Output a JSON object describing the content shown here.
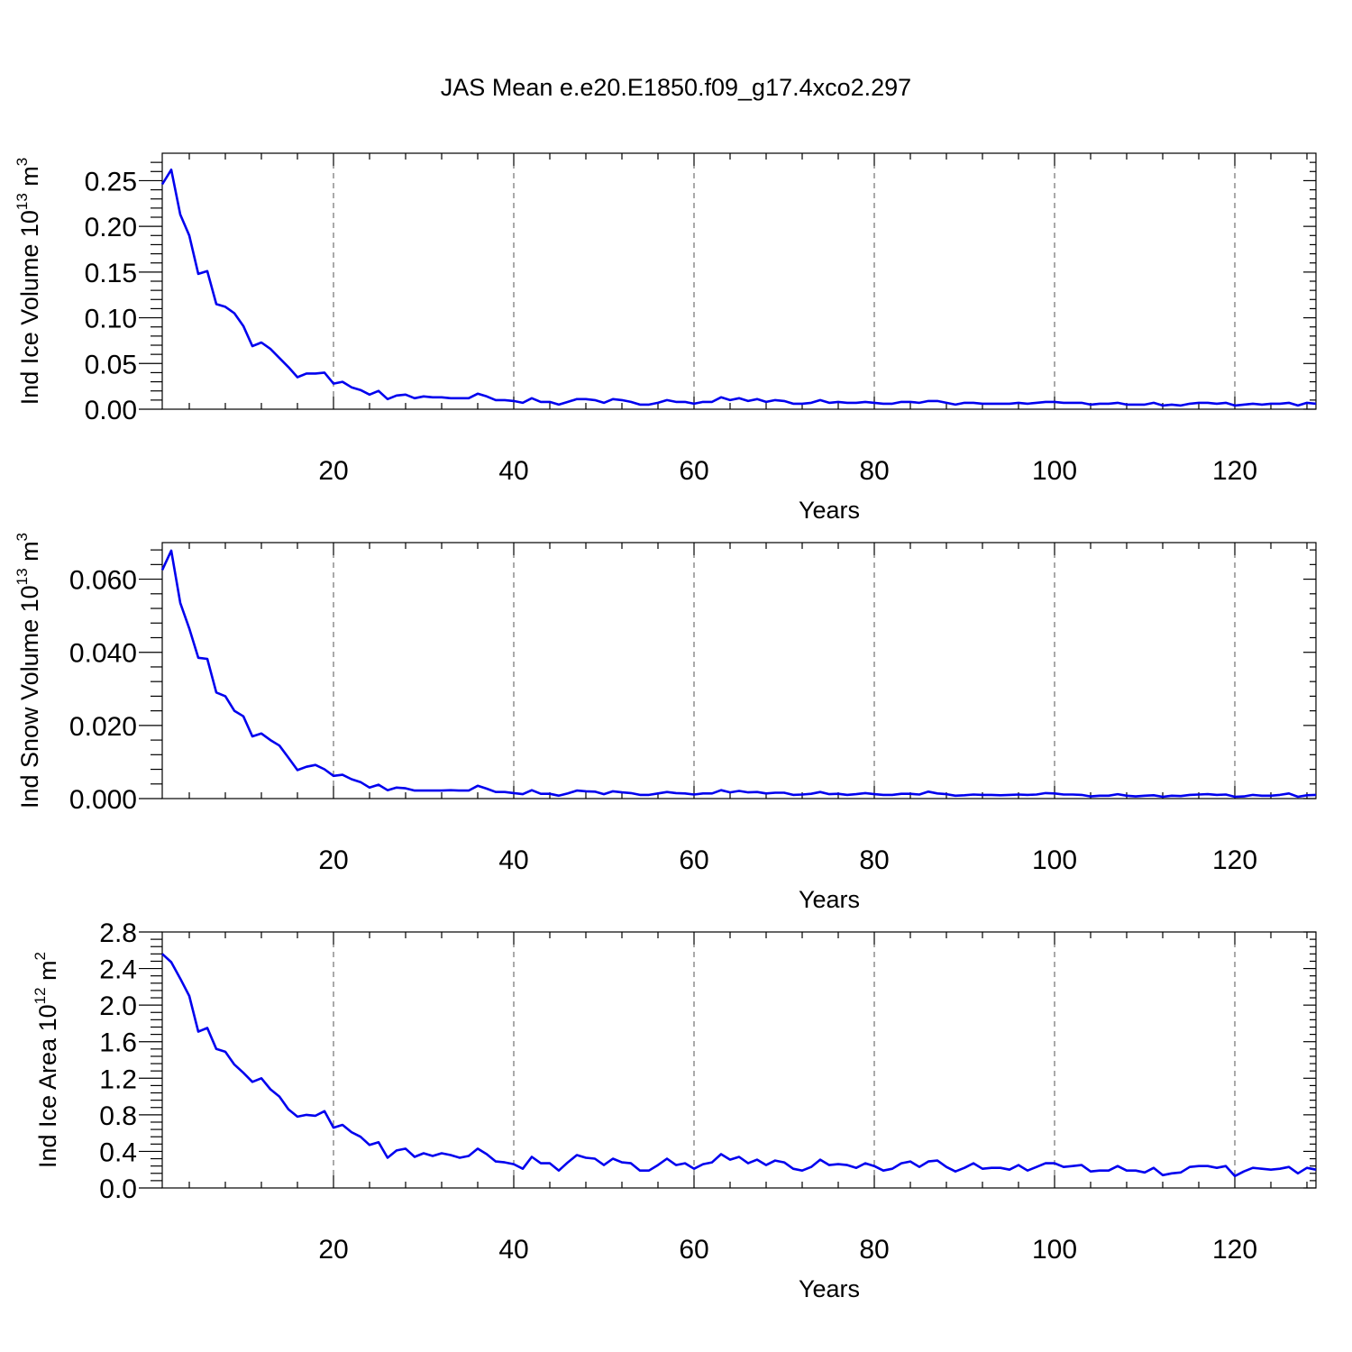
{
  "title": "JAS Mean e.e20.E1850.f09_g17.4xco2.297",
  "colors": {
    "line": "#0000ee",
    "axis": "#000000",
    "grid": "#555555"
  },
  "chart_data": [
    {
      "type": "line",
      "xlabel": "Years",
      "ylabel_parts": [
        "Ind Ice Volume 10",
        "13",
        " m",
        "3"
      ],
      "xlim": [
        1,
        129
      ],
      "ylim": [
        0,
        0.28
      ],
      "xticks": [
        20,
        40,
        60,
        80,
        100,
        120
      ],
      "xtick_labels": [
        "20",
        "40",
        "60",
        "80",
        "100",
        "120"
      ],
      "yticks": [
        0,
        0.05,
        0.1,
        0.15,
        0.2,
        0.25
      ],
      "ytick_labels": [
        "0.00",
        "0.05",
        "0.10",
        "0.15",
        "0.20",
        "0.25"
      ],
      "grid_x": true,
      "series": [
        {
          "x": [
            1,
            2,
            3,
            4,
            5,
            6,
            7,
            8,
            9,
            10,
            11,
            12,
            13,
            14,
            15,
            16,
            17,
            18,
            19,
            20,
            21,
            22,
            23,
            24,
            25,
            26,
            27,
            28,
            29,
            30,
            31,
            32,
            33,
            34,
            35,
            36,
            37,
            38,
            39,
            40,
            41,
            42,
            43,
            44,
            45,
            46,
            47,
            48,
            49,
            50,
            51,
            52,
            53,
            54,
            55,
            56,
            57,
            58,
            59,
            60,
            61,
            62,
            63,
            64,
            65,
            66,
            67,
            68,
            69,
            70,
            71,
            72,
            73,
            74,
            75,
            76,
            77,
            78,
            79,
            80,
            81,
            82,
            83,
            84,
            85,
            86,
            87,
            88,
            89,
            90,
            91,
            92,
            93,
            94,
            95,
            96,
            97,
            98,
            99,
            100,
            101,
            102,
            103,
            104,
            105,
            106,
            107,
            108,
            109,
            110,
            111,
            112,
            113,
            114,
            115,
            116,
            117,
            118,
            119,
            120,
            121,
            122,
            123,
            124,
            125,
            126,
            127,
            128,
            129
          ],
          "values": [
            0.246,
            0.262,
            0.213,
            0.19,
            0.148,
            0.151,
            0.115,
            0.112,
            0.105,
            0.091,
            0.069,
            0.073,
            0.066,
            0.056,
            0.046,
            0.035,
            0.039,
            0.039,
            0.04,
            0.028,
            0.03,
            0.024,
            0.021,
            0.016,
            0.02,
            0.011,
            0.015,
            0.016,
            0.012,
            0.014,
            0.013,
            0.013,
            0.012,
            0.012,
            0.012,
            0.017,
            0.014,
            0.01,
            0.01,
            0.009,
            0.007,
            0.012,
            0.008,
            0.008,
            0.005,
            0.008,
            0.011,
            0.011,
            0.01,
            0.007,
            0.011,
            0.01,
            0.008,
            0.005,
            0.005,
            0.007,
            0.01,
            0.008,
            0.008,
            0.006,
            0.008,
            0.008,
            0.013,
            0.01,
            0.012,
            0.009,
            0.011,
            0.008,
            0.01,
            0.009,
            0.006,
            0.006,
            0.007,
            0.01,
            0.007,
            0.008,
            0.007,
            0.007,
            0.008,
            0.007,
            0.006,
            0.006,
            0.008,
            0.008,
            0.007,
            0.009,
            0.009,
            0.007,
            0.005,
            0.007,
            0.007,
            0.006,
            0.006,
            0.006,
            0.006,
            0.007,
            0.006,
            0.007,
            0.008,
            0.008,
            0.007,
            0.007,
            0.007,
            0.005,
            0.006,
            0.006,
            0.007,
            0.005,
            0.005,
            0.005,
            0.007,
            0.004,
            0.005,
            0.004,
            0.006,
            0.007,
            0.007,
            0.006,
            0.007,
            0.004,
            0.005,
            0.006,
            0.005,
            0.006,
            0.006,
            0.007,
            0.004,
            0.007,
            0.006
          ]
        }
      ]
    },
    {
      "type": "line",
      "xlabel": "Years",
      "ylabel_parts": [
        "Ind Snow Volume 10",
        "13",
        " m",
        "3"
      ],
      "xlim": [
        1,
        129
      ],
      "ylim": [
        0,
        0.07
      ],
      "xticks": [
        20,
        40,
        60,
        80,
        100,
        120
      ],
      "xtick_labels": [
        "20",
        "40",
        "60",
        "80",
        "100",
        "120"
      ],
      "yticks": [
        0,
        0.02,
        0.04,
        0.06
      ],
      "ytick_labels": [
        "0.000",
        "0.020",
        "0.040",
        "0.060"
      ],
      "grid_x": true,
      "series": [
        {
          "x": [
            1,
            2,
            3,
            4,
            5,
            6,
            7,
            8,
            9,
            10,
            11,
            12,
            13,
            14,
            15,
            16,
            17,
            18,
            19,
            20,
            21,
            22,
            23,
            24,
            25,
            26,
            27,
            28,
            29,
            30,
            31,
            32,
            33,
            34,
            35,
            36,
            37,
            38,
            39,
            40,
            41,
            42,
            43,
            44,
            45,
            46,
            47,
            48,
            49,
            50,
            51,
            52,
            53,
            54,
            55,
            56,
            57,
            58,
            59,
            60,
            61,
            62,
            63,
            64,
            65,
            66,
            67,
            68,
            69,
            70,
            71,
            72,
            73,
            74,
            75,
            76,
            77,
            78,
            79,
            80,
            81,
            82,
            83,
            84,
            85,
            86,
            87,
            88,
            89,
            90,
            91,
            92,
            93,
            94,
            95,
            96,
            97,
            98,
            99,
            100,
            101,
            102,
            103,
            104,
            105,
            106,
            107,
            108,
            109,
            110,
            111,
            112,
            113,
            114,
            115,
            116,
            117,
            118,
            119,
            120,
            121,
            122,
            123,
            124,
            125,
            126,
            127,
            128,
            129
          ],
          "values": [
            0.0625,
            0.0678,
            0.0535,
            0.0465,
            0.0385,
            0.0382,
            0.029,
            0.028,
            0.024,
            0.0225,
            0.017,
            0.0178,
            0.016,
            0.0145,
            0.0112,
            0.0078,
            0.0087,
            0.0092,
            0.008,
            0.0062,
            0.0065,
            0.0053,
            0.0045,
            0.003,
            0.0038,
            0.0023,
            0.003,
            0.0028,
            0.0022,
            0.0022,
            0.0022,
            0.0022,
            0.0023,
            0.0022,
            0.0022,
            0.0035,
            0.0027,
            0.0018,
            0.0018,
            0.0015,
            0.0012,
            0.0023,
            0.0013,
            0.0013,
            0.0008,
            0.0014,
            0.0022,
            0.002,
            0.0019,
            0.0012,
            0.002,
            0.0017,
            0.0015,
            0.001,
            0.001,
            0.0014,
            0.0018,
            0.0015,
            0.0014,
            0.0011,
            0.0014,
            0.0014,
            0.0023,
            0.0017,
            0.0021,
            0.0017,
            0.0018,
            0.0014,
            0.0016,
            0.0016,
            0.001,
            0.0011,
            0.0013,
            0.0018,
            0.0012,
            0.0013,
            0.001,
            0.0012,
            0.0015,
            0.0012,
            0.001,
            0.001,
            0.0013,
            0.0013,
            0.0011,
            0.0019,
            0.0014,
            0.0012,
            0.0008,
            0.0009,
            0.0011,
            0.001,
            0.001,
            0.0009,
            0.001,
            0.0011,
            0.001,
            0.0011,
            0.0015,
            0.0014,
            0.0011,
            0.0011,
            0.001,
            0.0006,
            0.0008,
            0.0008,
            0.0012,
            0.0008,
            0.0006,
            0.0008,
            0.0009,
            0.0005,
            0.0008,
            0.0007,
            0.001,
            0.0011,
            0.0012,
            0.001,
            0.0011,
            0.0005,
            0.0006,
            0.001,
            0.0008,
            0.0008,
            0.001,
            0.0014,
            0.0005,
            0.0009,
            0.001
          ]
        }
      ]
    },
    {
      "type": "line",
      "xlabel": "Years",
      "ylabel_parts": [
        "Ind Ice Area 10",
        "12",
        " m",
        "2"
      ],
      "xlim": [
        1,
        129
      ],
      "ylim": [
        0,
        2.8
      ],
      "xticks": [
        20,
        40,
        60,
        80,
        100,
        120
      ],
      "xtick_labels": [
        "20",
        "40",
        "60",
        "80",
        "100",
        "120"
      ],
      "yticks": [
        0,
        0.4,
        0.8,
        1.2,
        1.6,
        2.0,
        2.4,
        2.8
      ],
      "ytick_labels": [
        "0.0",
        "0.4",
        "0.8",
        "1.2",
        "1.6",
        "2.0",
        "2.4",
        "2.8"
      ],
      "grid_x": true,
      "series": [
        {
          "x": [
            1,
            2,
            3,
            4,
            5,
            6,
            7,
            8,
            9,
            10,
            11,
            12,
            13,
            14,
            15,
            16,
            17,
            18,
            19,
            20,
            21,
            22,
            23,
            24,
            25,
            26,
            27,
            28,
            29,
            30,
            31,
            32,
            33,
            34,
            35,
            36,
            37,
            38,
            39,
            40,
            41,
            42,
            43,
            44,
            45,
            46,
            47,
            48,
            49,
            50,
            51,
            52,
            53,
            54,
            55,
            56,
            57,
            58,
            59,
            60,
            61,
            62,
            63,
            64,
            65,
            66,
            67,
            68,
            69,
            70,
            71,
            72,
            73,
            74,
            75,
            76,
            77,
            78,
            79,
            80,
            81,
            82,
            83,
            84,
            85,
            86,
            87,
            88,
            89,
            90,
            91,
            92,
            93,
            94,
            95,
            96,
            97,
            98,
            99,
            100,
            101,
            102,
            103,
            104,
            105,
            106,
            107,
            108,
            109,
            110,
            111,
            112,
            113,
            114,
            115,
            116,
            117,
            118,
            119,
            120,
            121,
            122,
            123,
            124,
            125,
            126,
            127,
            128,
            129
          ],
          "values": [
            2.56,
            2.47,
            2.29,
            2.1,
            1.71,
            1.75,
            1.52,
            1.49,
            1.35,
            1.26,
            1.16,
            1.2,
            1.08,
            1.0,
            0.86,
            0.78,
            0.8,
            0.79,
            0.84,
            0.66,
            0.69,
            0.61,
            0.56,
            0.47,
            0.5,
            0.33,
            0.41,
            0.43,
            0.34,
            0.38,
            0.35,
            0.38,
            0.36,
            0.33,
            0.35,
            0.43,
            0.37,
            0.29,
            0.28,
            0.26,
            0.21,
            0.34,
            0.27,
            0.27,
            0.19,
            0.28,
            0.36,
            0.33,
            0.32,
            0.25,
            0.32,
            0.28,
            0.27,
            0.19,
            0.19,
            0.25,
            0.32,
            0.25,
            0.27,
            0.21,
            0.26,
            0.28,
            0.37,
            0.31,
            0.34,
            0.27,
            0.31,
            0.25,
            0.3,
            0.28,
            0.21,
            0.19,
            0.23,
            0.31,
            0.25,
            0.26,
            0.25,
            0.22,
            0.27,
            0.24,
            0.19,
            0.21,
            0.27,
            0.29,
            0.23,
            0.29,
            0.3,
            0.23,
            0.18,
            0.22,
            0.27,
            0.21,
            0.22,
            0.22,
            0.2,
            0.25,
            0.19,
            0.23,
            0.27,
            0.27,
            0.23,
            0.24,
            0.25,
            0.18,
            0.19,
            0.19,
            0.24,
            0.19,
            0.19,
            0.17,
            0.22,
            0.14,
            0.16,
            0.17,
            0.23,
            0.24,
            0.24,
            0.22,
            0.24,
            0.13,
            0.18,
            0.22,
            0.21,
            0.2,
            0.21,
            0.23,
            0.16,
            0.22,
            0.2
          ]
        }
      ]
    }
  ]
}
